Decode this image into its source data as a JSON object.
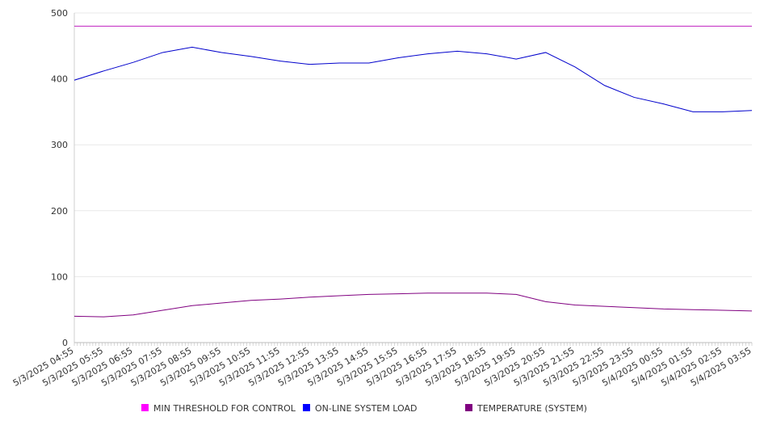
{
  "chart_data": {
    "type": "line",
    "title": "",
    "xlabel": "",
    "ylabel": "",
    "ylim": [
      0,
      500
    ],
    "y_ticks": [
      "0",
      "100",
      "200",
      "300",
      "400",
      "500"
    ],
    "grid": "horizontal",
    "legend_position": "bottom",
    "x": [
      "5/3/2025 04:55",
      "5/3/2025 05:55",
      "5/3/2025 06:55",
      "5/3/2025 07:55",
      "5/3/2025 08:55",
      "5/3/2025 09:55",
      "5/3/2025 10:55",
      "5/3/2025 11:55",
      "5/3/2025 12:55",
      "5/3/2025 13:55",
      "5/3/2025 14:55",
      "5/3/2025 15:55",
      "5/3/2025 16:55",
      "5/3/2025 17:55",
      "5/3/2025 18:55",
      "5/3/2025 19:55",
      "5/3/2025 20:55",
      "5/3/2025 21:55",
      "5/3/2025 22:55",
      "5/3/2025 23:55",
      "5/4/2025 00:55",
      "5/4/2025 01:55",
      "5/4/2025 02:55",
      "5/4/2025 03:55"
    ],
    "series": [
      {
        "name": "MIN THRESHOLD FOR CONTROL",
        "color": "#c020c0",
        "legend_color": "#ff00ff",
        "values": [
          480,
          480,
          480,
          480,
          480,
          480,
          480,
          480,
          480,
          480,
          480,
          480,
          480,
          480,
          480,
          480,
          480,
          480,
          480,
          480,
          480,
          480,
          480,
          480
        ]
      },
      {
        "name": "ON-LINE SYSTEM LOAD",
        "color": "#0000cc",
        "legend_color": "#0000ff",
        "values": [
          398,
          412,
          425,
          440,
          448,
          440,
          434,
          427,
          422,
          424,
          424,
          432,
          438,
          442,
          438,
          430,
          440,
          418,
          390,
          372,
          362,
          350,
          350,
          352
        ]
      },
      {
        "name": "TEMPERATURE (SYSTEM)",
        "color": "#800080",
        "legend_color": "#800080",
        "values": [
          40,
          39,
          42,
          49,
          56,
          60,
          64,
          66,
          69,
          71,
          73,
          74,
          75,
          75,
          75,
          73,
          62,
          57,
          55,
          53,
          51,
          50,
          49,
          48
        ]
      }
    ]
  }
}
